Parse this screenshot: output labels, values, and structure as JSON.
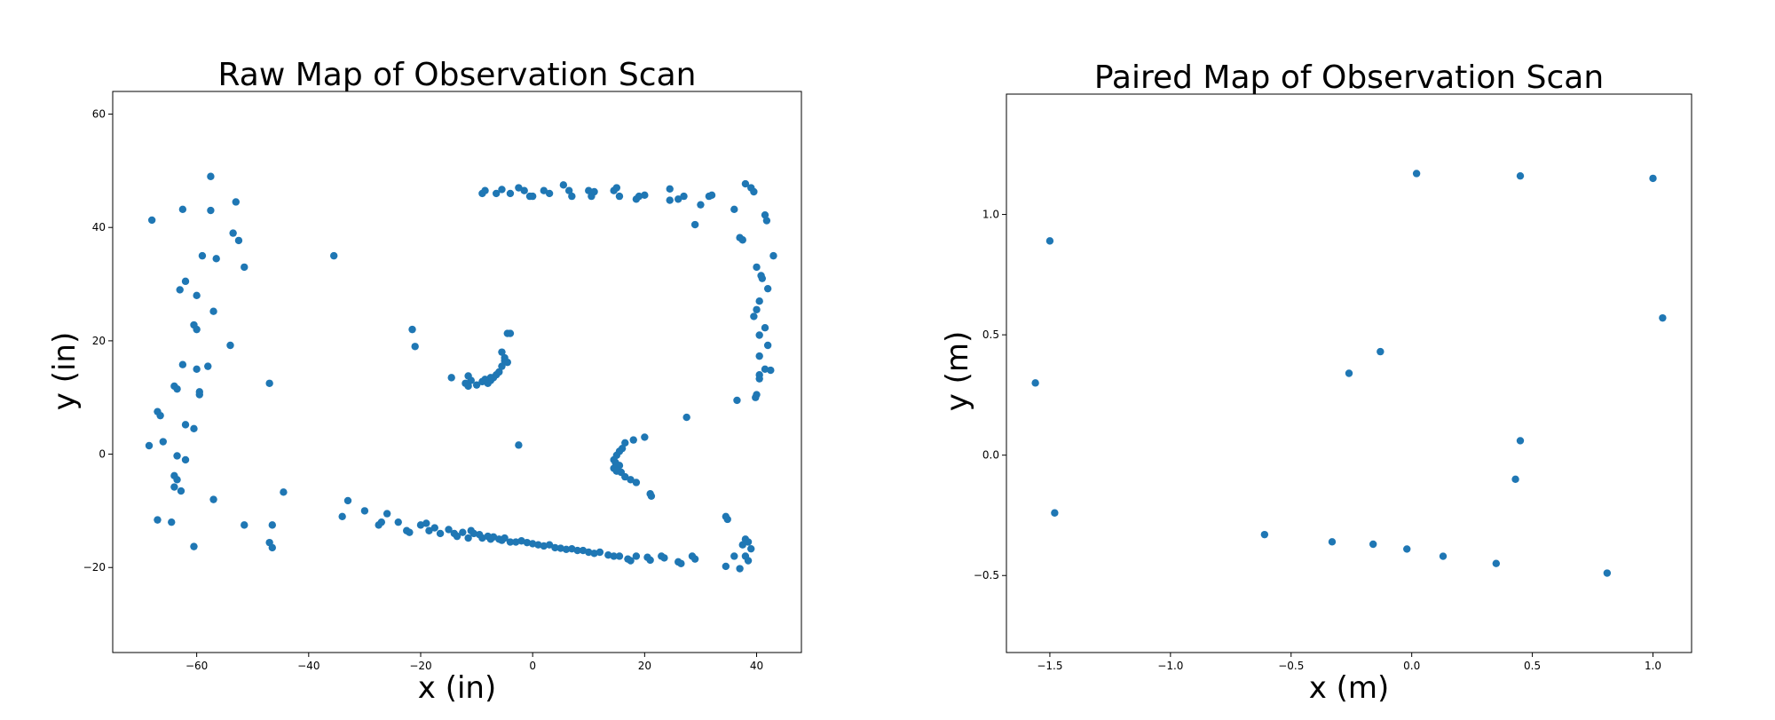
{
  "chart_data": [
    {
      "type": "scatter",
      "title": "Raw Map of Observation Scan",
      "xlabel": "x (in)",
      "ylabel": "y (in)",
      "xlim": [
        -75,
        48
      ],
      "ylim": [
        -35,
        64
      ],
      "xticks": [
        -60,
        -40,
        -20,
        0,
        20,
        40
      ],
      "yticks": [
        -20,
        0,
        20,
        40,
        60
      ],
      "xtick_labels": [
        "−60",
        "−40",
        "−20",
        "0",
        "20",
        "40"
      ],
      "ytick_labels": [
        "−20",
        "0",
        "20",
        "40",
        "60"
      ],
      "color": "#1f77b4",
      "grid": false,
      "points": [
        [
          -57.5,
          49
        ],
        [
          -68,
          41.3
        ],
        [
          -62.5,
          43.2
        ],
        [
          -57.5,
          43
        ],
        [
          -53,
          44.5
        ],
        [
          -53.5,
          39
        ],
        [
          -52.5,
          37.7
        ],
        [
          -51.5,
          33
        ],
        [
          -59,
          35
        ],
        [
          -56.5,
          34.5
        ],
        [
          -63,
          29
        ],
        [
          -62,
          30.5
        ],
        [
          -60,
          28
        ],
        [
          -57,
          25.2
        ],
        [
          -60.5,
          22.8
        ],
        [
          -60,
          22
        ],
        [
          -54,
          19.2
        ],
        [
          -62.5,
          15.8
        ],
        [
          -58,
          15.5
        ],
        [
          -60,
          15
        ],
        [
          -64,
          12
        ],
        [
          -63.5,
          11.5
        ],
        [
          -59.5,
          11
        ],
        [
          -59.5,
          10.5
        ],
        [
          -67,
          7.5
        ],
        [
          -66.5,
          6.8
        ],
        [
          -62,
          5.2
        ],
        [
          -60.5,
          4.5
        ],
        [
          -66,
          2.2
        ],
        [
          -68.5,
          1.5
        ],
        [
          -63.5,
          -0.3
        ],
        [
          -62,
          -1
        ],
        [
          -64,
          -3.8
        ],
        [
          -63.5,
          -4.5
        ],
        [
          -64,
          -5.8
        ],
        [
          -62.8,
          -6.5
        ],
        [
          -57,
          -8
        ],
        [
          -67,
          -11.6
        ],
        [
          -64.5,
          -12
        ],
        [
          -60.5,
          -16.3
        ],
        [
          -51.5,
          -12.5
        ],
        [
          -46.5,
          -12.5
        ],
        [
          -47,
          -15.6
        ],
        [
          -46.5,
          -16.5
        ],
        [
          -44.5,
          -6.7
        ],
        [
          -47,
          12.5
        ],
        [
          -35.5,
          35
        ],
        [
          -21.5,
          22
        ],
        [
          -21,
          19
        ],
        [
          -14.5,
          13.5
        ],
        [
          -11.5,
          13.8
        ],
        [
          -11,
          13
        ],
        [
          -12,
          12.5
        ],
        [
          -11.5,
          12
        ],
        [
          -10,
          12.2
        ],
        [
          -9,
          12.8
        ],
        [
          -8,
          12.5
        ],
        [
          -7.5,
          13
        ],
        [
          -7,
          13.5
        ],
        [
          -6.5,
          14
        ],
        [
          -6,
          14.5
        ],
        [
          -5.5,
          15.5
        ],
        [
          -5,
          16.5
        ],
        [
          -4.5,
          16.2
        ],
        [
          -5,
          17
        ],
        [
          -5.5,
          18
        ],
        [
          -4.5,
          21.3
        ],
        [
          -4,
          21.3
        ],
        [
          -7.5,
          13.5
        ],
        [
          -8.5,
          13.2
        ],
        [
          -2.5,
          1.6
        ],
        [
          -9,
          46
        ],
        [
          -8.5,
          46.5
        ],
        [
          -6.5,
          46
        ],
        [
          -5.5,
          46.7
        ],
        [
          -4,
          46
        ],
        [
          -2.5,
          47
        ],
        [
          -1.5,
          46.5
        ],
        [
          -0.5,
          45.5
        ],
        [
          0,
          45.5
        ],
        [
          2,
          46.5
        ],
        [
          3,
          46
        ],
        [
          5.5,
          47.5
        ],
        [
          6.5,
          46.5
        ],
        [
          7,
          45.5
        ],
        [
          10,
          46.5
        ],
        [
          10.5,
          45.5
        ],
        [
          11,
          46.3
        ],
        [
          14.5,
          46.5
        ],
        [
          15,
          47
        ],
        [
          15.5,
          45.5
        ],
        [
          18.5,
          45
        ],
        [
          19,
          45.5
        ],
        [
          20,
          45.7
        ],
        [
          24.5,
          46.8
        ],
        [
          24.5,
          44.8
        ],
        [
          26,
          45
        ],
        [
          27,
          45.5
        ],
        [
          29,
          40.5
        ],
        [
          30,
          44
        ],
        [
          31.5,
          45.5
        ],
        [
          32,
          45.7
        ],
        [
          36,
          43.2
        ],
        [
          38,
          47.7
        ],
        [
          39,
          47
        ],
        [
          39.5,
          46.3
        ],
        [
          41.5,
          42.2
        ],
        [
          41.8,
          41.2
        ],
        [
          37,
          38.2
        ],
        [
          37.5,
          37.8
        ],
        [
          43,
          35
        ],
        [
          40,
          33
        ],
        [
          40.8,
          31.5
        ],
        [
          41,
          31
        ],
        [
          42,
          29.2
        ],
        [
          40.5,
          27
        ],
        [
          40,
          25.5
        ],
        [
          39.5,
          24.3
        ],
        [
          41.5,
          22.3
        ],
        [
          40.5,
          21
        ],
        [
          42,
          19.2
        ],
        [
          40.5,
          17.3
        ],
        [
          41.5,
          15
        ],
        [
          42.5,
          14.8
        ],
        [
          40.5,
          14
        ],
        [
          40.5,
          13.3
        ],
        [
          40,
          10.5
        ],
        [
          39.8,
          10
        ],
        [
          36.5,
          9.5
        ],
        [
          27.5,
          6.5
        ],
        [
          20,
          3
        ],
        [
          18,
          2.5
        ],
        [
          16.5,
          2
        ],
        [
          16,
          1
        ],
        [
          15.5,
          0.5
        ],
        [
          15,
          -0.2
        ],
        [
          14.5,
          -1
        ],
        [
          14.8,
          -1.5
        ],
        [
          15.5,
          -2
        ],
        [
          14.5,
          -2.5
        ],
        [
          15,
          -3
        ],
        [
          15.8,
          -3.2
        ],
        [
          16.5,
          -4
        ],
        [
          17.5,
          -4.5
        ],
        [
          18.5,
          -5
        ],
        [
          21,
          -7
        ],
        [
          21.2,
          -7.4
        ],
        [
          -34,
          -11
        ],
        [
          -33,
          -8.2
        ],
        [
          -30,
          -10
        ],
        [
          -27,
          -12
        ],
        [
          -27.5,
          -12.5
        ],
        [
          -26,
          -10.5
        ],
        [
          -24,
          -12
        ],
        [
          -22.5,
          -13.5
        ],
        [
          -22,
          -13.8
        ],
        [
          -20,
          -12.5
        ],
        [
          -19,
          -12.2
        ],
        [
          -18.5,
          -13.5
        ],
        [
          -17.5,
          -13
        ],
        [
          -16.5,
          -14
        ],
        [
          -15,
          -13.3
        ],
        [
          -14,
          -14
        ],
        [
          -13.5,
          -14.5
        ],
        [
          -12.5,
          -13.8
        ],
        [
          -11.5,
          -14.8
        ],
        [
          -11,
          -13.5
        ],
        [
          -10.5,
          -14
        ],
        [
          -9.5,
          -14.2
        ],
        [
          -9,
          -14.8
        ],
        [
          -8,
          -14.5
        ],
        [
          -7.5,
          -15
        ],
        [
          -7,
          -14.6
        ],
        [
          -6,
          -15
        ],
        [
          -5.5,
          -15.2
        ],
        [
          -5,
          -14.8
        ],
        [
          -4,
          -15.5
        ],
        [
          -3,
          -15.5
        ],
        [
          -2,
          -15.3
        ],
        [
          -1,
          -15.6
        ],
        [
          0,
          -15.8
        ],
        [
          1,
          -16
        ],
        [
          2,
          -16.2
        ],
        [
          3,
          -16
        ],
        [
          4,
          -16.5
        ],
        [
          5,
          -16.6
        ],
        [
          6,
          -16.8
        ],
        [
          7,
          -16.7
        ],
        [
          8,
          -17
        ],
        [
          9,
          -17
        ],
        [
          10,
          -17.3
        ],
        [
          11,
          -17.5
        ],
        [
          12,
          -17.3
        ],
        [
          13.5,
          -17.8
        ],
        [
          14.5,
          -18
        ],
        [
          15.5,
          -18
        ],
        [
          17,
          -18.5
        ],
        [
          17.5,
          -18.8
        ],
        [
          18.5,
          -18
        ],
        [
          20.5,
          -18.2
        ],
        [
          21,
          -18.7
        ],
        [
          23,
          -18
        ],
        [
          23.5,
          -18.3
        ],
        [
          26,
          -19
        ],
        [
          26.5,
          -19.3
        ],
        [
          28.5,
          -18
        ],
        [
          29,
          -18.5
        ],
        [
          34.5,
          -11
        ],
        [
          34.8,
          -11.5
        ],
        [
          34.5,
          -19.8
        ],
        [
          36,
          -18
        ],
        [
          37,
          -20.2
        ],
        [
          37.5,
          -16
        ],
        [
          38,
          -15
        ],
        [
          38.5,
          -15.5
        ],
        [
          38,
          -18
        ],
        [
          39,
          -16.7
        ],
        [
          38.5,
          -18.8
        ]
      ]
    },
    {
      "type": "scatter",
      "title": "Paired Map of Observation Scan",
      "xlabel": "x (m)",
      "ylabel": "y (m)",
      "xlim": [
        -1.68,
        1.16
      ],
      "ylim": [
        -0.82,
        1.5
      ],
      "xticks": [
        -1.5,
        -1.0,
        -0.5,
        0.0,
        0.5,
        1.0
      ],
      "yticks": [
        -0.5,
        0.0,
        0.5,
        1.0
      ],
      "xtick_labels": [
        "−1.5",
        "−1.0",
        "−0.5",
        "0.0",
        "0.5",
        "1.0"
      ],
      "ytick_labels": [
        "−0.5",
        "0.0",
        "0.5",
        "1.0"
      ],
      "color": "#1f77b4",
      "grid": false,
      "points": [
        [
          -1.5,
          0.89
        ],
        [
          -1.56,
          0.3
        ],
        [
          -1.48,
          -0.24
        ],
        [
          0.02,
          1.17
        ],
        [
          0.45,
          1.16
        ],
        [
          1.0,
          1.15
        ],
        [
          1.04,
          0.57
        ],
        [
          -0.13,
          0.43
        ],
        [
          -0.26,
          0.34
        ],
        [
          0.45,
          0.06
        ],
        [
          0.43,
          -0.1
        ],
        [
          -0.61,
          -0.33
        ],
        [
          -0.33,
          -0.36
        ],
        [
          -0.16,
          -0.37
        ],
        [
          -0.02,
          -0.39
        ],
        [
          0.13,
          -0.42
        ],
        [
          0.35,
          -0.45
        ],
        [
          0.81,
          -0.49
        ]
      ]
    }
  ]
}
